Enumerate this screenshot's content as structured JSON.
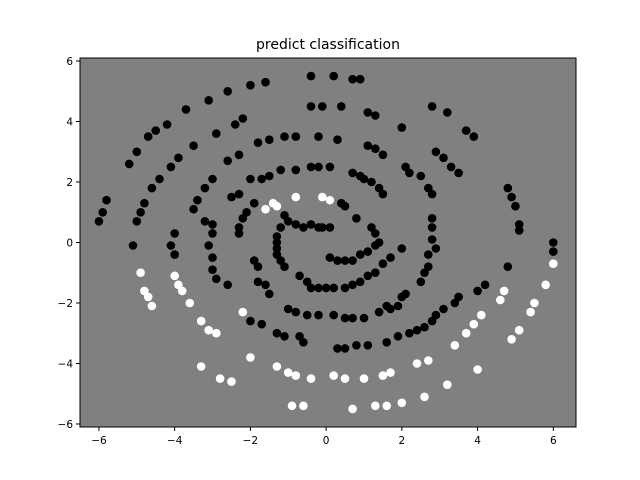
{
  "chart_data": {
    "type": "scatter",
    "title": "predict classification",
    "xlabel": "",
    "ylabel": "",
    "xlim": [
      -6.5,
      6.6
    ],
    "ylim": [
      -6.1,
      6.1
    ],
    "xticks": [
      -6,
      -4,
      -2,
      0,
      2,
      4,
      6
    ],
    "yticks": [
      -6,
      -4,
      -2,
      0,
      2,
      4,
      6
    ],
    "xtick_labels": [
      "−6",
      "−4",
      "−2",
      "0",
      "2",
      "4",
      "6"
    ],
    "ytick_labels": [
      "−6",
      "−4",
      "−2",
      "0",
      "2",
      "4",
      "6"
    ],
    "grid": false,
    "background_color": "#808080",
    "series": [
      {
        "color": "#000000",
        "points": [
          [
            -0.4,
            5.5
          ],
          [
            0.2,
            5.5
          ],
          [
            0.7,
            5.4
          ],
          [
            0.9,
            5.4
          ],
          [
            -1.6,
            5.3
          ],
          [
            -2.0,
            5.2
          ],
          [
            -2.6,
            5.0
          ],
          [
            -3.1,
            4.7
          ],
          [
            -3.7,
            4.4
          ],
          [
            -0.4,
            4.5
          ],
          [
            -0.1,
            4.5
          ],
          [
            0.4,
            4.5
          ],
          [
            1.1,
            4.3
          ],
          [
            1.3,
            4.2
          ],
          [
            2.8,
            4.5
          ],
          [
            3.2,
            4.3
          ],
          [
            3.7,
            3.7
          ],
          [
            3.9,
            3.5
          ],
          [
            -4.2,
            3.9
          ],
          [
            -4.5,
            3.7
          ],
          [
            -4.7,
            3.5
          ],
          [
            -5.0,
            3.0
          ],
          [
            -5.2,
            2.6
          ],
          [
            -2.4,
            3.9
          ],
          [
            -2.2,
            4.1
          ],
          [
            -2.9,
            3.6
          ],
          [
            -1.8,
            3.3
          ],
          [
            -1.5,
            3.4
          ],
          [
            -1.1,
            3.5
          ],
          [
            -0.8,
            3.5
          ],
          [
            -0.2,
            3.5
          ],
          [
            0.3,
            3.4
          ],
          [
            2.0,
            3.8
          ],
          [
            1.1,
            3.2
          ],
          [
            1.3,
            3.1
          ],
          [
            1.5,
            2.9
          ],
          [
            2.9,
            3.0
          ],
          [
            3.1,
            2.8
          ],
          [
            3.3,
            2.5
          ],
          [
            3.5,
            2.3
          ],
          [
            -3.5,
            3.2
          ],
          [
            -3.9,
            2.8
          ],
          [
            -4.1,
            2.5
          ],
          [
            -4.4,
            2.1
          ],
          [
            -4.6,
            1.8
          ],
          [
            -4.8,
            1.3
          ],
          [
            -4.9,
            1.0
          ],
          [
            -5.0,
            0.7
          ],
          [
            -5.1,
            -0.1
          ],
          [
            -5.8,
            1.4
          ],
          [
            -5.9,
            1.0
          ],
          [
            -6.0,
            0.7
          ],
          [
            -2.3,
            2.9
          ],
          [
            -2.6,
            2.7
          ],
          [
            -3.0,
            2.1
          ],
          [
            -3.2,
            1.8
          ],
          [
            -3.4,
            1.4
          ],
          [
            -3.5,
            1.1
          ],
          [
            -3.2,
            0.7
          ],
          [
            -2.0,
            2.1
          ],
          [
            -1.7,
            2.1
          ],
          [
            -1.5,
            2.2
          ],
          [
            -1.2,
            2.4
          ],
          [
            -2.3,
            1.6
          ],
          [
            -2.5,
            1.5
          ],
          [
            -0.8,
            2.4
          ],
          [
            -0.4,
            2.5
          ],
          [
            -0.2,
            2.5
          ],
          [
            0.1,
            2.5
          ],
          [
            0.7,
            2.3
          ],
          [
            0.9,
            2.2
          ],
          [
            1.0,
            2.1
          ],
          [
            1.2,
            2.0
          ],
          [
            1.4,
            1.8
          ],
          [
            1.5,
            1.6
          ],
          [
            2.1,
            2.5
          ],
          [
            2.2,
            2.3
          ],
          [
            2.5,
            2.2
          ],
          [
            2.7,
            1.8
          ],
          [
            2.8,
            1.6
          ],
          [
            4.8,
            1.8
          ],
          [
            4.9,
            1.5
          ],
          [
            5.0,
            1.2
          ],
          [
            5.1,
            0.6
          ],
          [
            5.1,
            0.4
          ],
          [
            -1.9,
            1.3
          ],
          [
            -2.1,
            1.0
          ],
          [
            -2.2,
            0.8
          ],
          [
            -2.3,
            0.5
          ],
          [
            -2.3,
            0.3
          ],
          [
            0.1,
            1.4
          ],
          [
            0.4,
            1.3
          ],
          [
            0.5,
            1.2
          ],
          [
            0.8,
            0.8
          ],
          [
            1.2,
            0.5
          ],
          [
            1.3,
            0.3
          ],
          [
            1.4,
            0.0
          ],
          [
            -1.1,
            0.9
          ],
          [
            -1.0,
            0.7
          ],
          [
            -0.8,
            0.6
          ],
          [
            -0.6,
            0.5
          ],
          [
            -0.4,
            0.6
          ],
          [
            -0.2,
            0.5
          ],
          [
            -0.1,
            0.5
          ],
          [
            0.1,
            0.5
          ],
          [
            -1.2,
            0.5
          ],
          [
            -1.3,
            0.2
          ],
          [
            -1.3,
            0.0
          ],
          [
            -1.3,
            -0.2
          ],
          [
            -1.3,
            -0.4
          ],
          [
            -1.2,
            -0.6
          ],
          [
            -1.1,
            -0.8
          ],
          [
            0.1,
            -0.5
          ],
          [
            0.3,
            -0.6
          ],
          [
            0.5,
            -0.6
          ],
          [
            0.7,
            -0.6
          ],
          [
            0.9,
            -0.4
          ],
          [
            1.1,
            -0.3
          ],
          [
            1.3,
            -0.1
          ],
          [
            -4.0,
            0.3
          ],
          [
            -4.1,
            -0.1
          ],
          [
            -4.0,
            -0.4
          ],
          [
            -3.0,
            0.6
          ],
          [
            -3.0,
            0.3
          ],
          [
            -3.1,
            -0.1
          ],
          [
            -3.0,
            -0.5
          ],
          [
            -3.0,
            -0.9
          ],
          [
            -2.9,
            -1.2
          ],
          [
            -2.6,
            -1.4
          ],
          [
            2.8,
            0.8
          ],
          [
            2.8,
            0.5
          ],
          [
            2.8,
            0.1
          ],
          [
            2.9,
            -0.2
          ],
          [
            2.7,
            -0.4
          ],
          [
            2.7,
            -0.8
          ],
          [
            2.6,
            -1.0
          ],
          [
            2.5,
            -1.3
          ],
          [
            -1.9,
            -0.6
          ],
          [
            -1.8,
            -0.8
          ],
          [
            -1.8,
            -1.3
          ],
          [
            -1.6,
            -1.4
          ],
          [
            -1.5,
            -1.7
          ],
          [
            -0.7,
            -1.1
          ],
          [
            -0.5,
            -1.3
          ],
          [
            -0.4,
            -1.5
          ],
          [
            -0.2,
            -1.5
          ],
          [
            0.0,
            -1.5
          ],
          [
            0.2,
            -1.5
          ],
          [
            0.5,
            -1.5
          ],
          [
            0.7,
            -1.4
          ],
          [
            0.9,
            -1.3
          ],
          [
            1.1,
            -1.1
          ],
          [
            1.3,
            -1.0
          ],
          [
            1.5,
            -0.7
          ],
          [
            1.7,
            -0.5
          ],
          [
            2.0,
            -0.2
          ],
          [
            -2.0,
            -2.6
          ],
          [
            -1.7,
            -2.7
          ],
          [
            -1.3,
            -3.0
          ],
          [
            -1.1,
            -3.1
          ],
          [
            -0.7,
            -3.1
          ],
          [
            -0.6,
            -3.3
          ],
          [
            -1.0,
            -2.2
          ],
          [
            -0.8,
            -2.3
          ],
          [
            -0.5,
            -2.4
          ],
          [
            -0.2,
            -2.4
          ],
          [
            0.2,
            -2.4
          ],
          [
            0.5,
            -2.5
          ],
          [
            0.7,
            -2.5
          ],
          [
            1.0,
            -2.5
          ],
          [
            1.4,
            -2.3
          ],
          [
            1.6,
            -2.1
          ],
          [
            1.7,
            -2.2
          ],
          [
            1.9,
            -2.1
          ],
          [
            2.0,
            -1.8
          ],
          [
            2.1,
            -1.7
          ],
          [
            2.8,
            -2.6
          ],
          [
            2.9,
            -2.4
          ],
          [
            3.1,
            -2.2
          ],
          [
            3.4,
            -2.0
          ],
          [
            3.5,
            -1.8
          ],
          [
            4.0,
            -1.6
          ],
          [
            4.2,
            -1.4
          ],
          [
            4.8,
            -0.8
          ],
          [
            0.3,
            -3.5
          ],
          [
            0.5,
            -3.5
          ],
          [
            0.8,
            -3.4
          ],
          [
            1.1,
            -3.4
          ],
          [
            1.6,
            -3.3
          ],
          [
            1.9,
            -3.1
          ],
          [
            2.2,
            -3.0
          ],
          [
            2.4,
            -2.9
          ],
          [
            2.6,
            -2.8
          ],
          [
            6.0,
            0.0
          ],
          [
            6.0,
            -0.3
          ]
        ]
      },
      {
        "color": "#ffffff",
        "points": [
          [
            -0.1,
            1.5
          ],
          [
            0.1,
            1.4
          ],
          [
            -0.8,
            1.5
          ],
          [
            -1.3,
            1.2
          ],
          [
            -1.4,
            1.3
          ],
          [
            -1.6,
            1.1
          ],
          [
            -4.9,
            -1.0
          ],
          [
            -4.8,
            -1.6
          ],
          [
            -4.7,
            -1.8
          ],
          [
            -4.6,
            -2.1
          ],
          [
            -4.0,
            -1.1
          ],
          [
            -3.9,
            -1.4
          ],
          [
            -3.8,
            -1.6
          ],
          [
            -3.6,
            -2.0
          ],
          [
            -3.3,
            -2.6
          ],
          [
            -3.1,
            -2.9
          ],
          [
            -2.9,
            -3.0
          ],
          [
            -2.2,
            -2.3
          ],
          [
            -2.0,
            -3.8
          ],
          [
            -3.3,
            -4.1
          ],
          [
            -2.8,
            -4.5
          ],
          [
            -2.5,
            -4.6
          ],
          [
            -1.3,
            -4.1
          ],
          [
            -1.0,
            -4.3
          ],
          [
            -0.8,
            -4.4
          ],
          [
            -0.4,
            -4.5
          ],
          [
            -0.9,
            -5.4
          ],
          [
            -0.6,
            -5.4
          ],
          [
            0.7,
            -5.5
          ],
          [
            1.3,
            -5.4
          ],
          [
            1.6,
            -5.4
          ],
          [
            2.0,
            -5.3
          ],
          [
            2.6,
            -5.1
          ],
          [
            0.2,
            -4.4
          ],
          [
            0.5,
            -4.5
          ],
          [
            1.0,
            -4.5
          ],
          [
            1.5,
            -4.4
          ],
          [
            1.7,
            -4.3
          ],
          [
            2.4,
            -4.0
          ],
          [
            2.7,
            -3.9
          ],
          [
            3.2,
            -4.7
          ],
          [
            3.4,
            -3.4
          ],
          [
            3.7,
            -3.0
          ],
          [
            3.9,
            -2.7
          ],
          [
            4.1,
            -2.4
          ],
          [
            4.6,
            -1.9
          ],
          [
            4.7,
            -1.6
          ],
          [
            4.0,
            -4.2
          ],
          [
            4.9,
            -3.2
          ],
          [
            5.1,
            -2.9
          ],
          [
            5.4,
            -2.3
          ],
          [
            5.5,
            -2.0
          ],
          [
            5.8,
            -1.4
          ],
          [
            6.0,
            -0.7
          ]
        ]
      }
    ]
  }
}
